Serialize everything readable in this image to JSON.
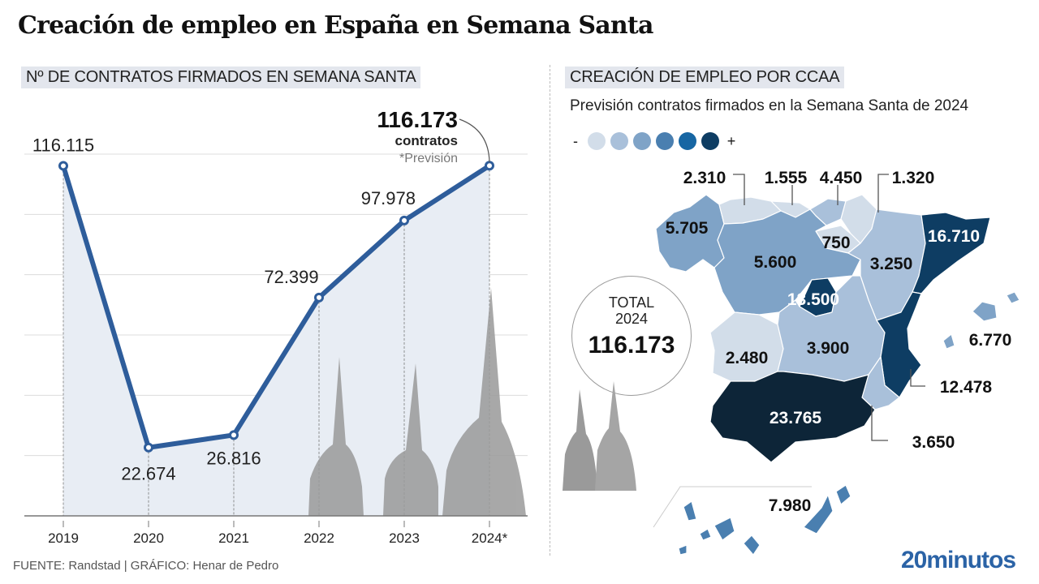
{
  "title": "Creación de empleo en España en Semana Santa",
  "left_section_label": "Nº DE CONTRATOS FIRMADOS EN SEMANA SANTA",
  "right_section_label": "CREACIÓN DE EMPLEO POR CCAA",
  "right_subtitle": "Previsión contratos firmados en la Semana Santa de 2024",
  "legend": {
    "minus": "-",
    "plus": "+",
    "colors": [
      "#d2dde9",
      "#a9c0da",
      "#7fa3c7",
      "#4a7fb0",
      "#1766a3",
      "#0e3d63"
    ]
  },
  "total_box": {
    "label1": "TOTAL",
    "label2": "2024",
    "value": "116.173"
  },
  "highlight": {
    "value": "116.173",
    "unit": "contratos",
    "note": "*Previsión"
  },
  "footer": "FUENTE: Randstad  |  GRÁFICO: Henar de Pedro",
  "brand": "20minutos",
  "colors": {
    "line": "#2e5d9b",
    "area": "#e8edf4",
    "grid": "#dcdcdc"
  },
  "chart_data": [
    {
      "type": "line",
      "title": "Nº de contratos firmados en Semana Santa",
      "xlabel": "",
      "ylabel": "",
      "categories": [
        "2019",
        "2020",
        "2021",
        "2022",
        "2023",
        "2024*"
      ],
      "values": [
        116115,
        22674,
        26816,
        72399,
        97978,
        116173
      ],
      "labels": [
        "116.115",
        "22.674",
        "26.816",
        "72.399",
        "97.978",
        "116.173"
      ],
      "ylim": [
        0,
        120000
      ],
      "grid_step": 20000,
      "grid": true,
      "note": "2024: previsión"
    },
    {
      "type": "table",
      "title": "Creación de empleo por CCAA - Previsión contratos firmados en la Semana Santa de 2024",
      "regions": [
        {
          "name": "Galicia",
          "value": 5705,
          "label": "5.705",
          "level": 3
        },
        {
          "name": "Asturias",
          "value": 2310,
          "label": "2.310",
          "level": 1
        },
        {
          "name": "Cantabria",
          "value": 1555,
          "label": "1.555",
          "level": 1
        },
        {
          "name": "País Vasco",
          "value": 4450,
          "label": "4.450",
          "level": 2
        },
        {
          "name": "Navarra",
          "value": 1320,
          "label": "1.320",
          "level": 1
        },
        {
          "name": "La Rioja",
          "value": 750,
          "label": "750",
          "level": 1
        },
        {
          "name": "Castilla y León",
          "value": 5600,
          "label": "5.600",
          "level": 3
        },
        {
          "name": "Aragón",
          "value": 3250,
          "label": "3.250",
          "level": 2
        },
        {
          "name": "Cataluña",
          "value": 16710,
          "label": "16.710",
          "level": 6
        },
        {
          "name": "Madrid",
          "value": 13500,
          "label": "13.500",
          "level": 6
        },
        {
          "name": "Extremadura",
          "value": 2480,
          "label": "2.480",
          "level": 1
        },
        {
          "name": "Castilla-La Mancha",
          "value": 3900,
          "label": "3.900",
          "level": 2
        },
        {
          "name": "Comunidad Valenciana",
          "value": 12478,
          "label": "12.478",
          "level": 6
        },
        {
          "name": "Murcia",
          "value": 3650,
          "label": "3.650",
          "level": 2
        },
        {
          "name": "Andalucía",
          "value": 23765,
          "label": "23.765",
          "level": 6
        },
        {
          "name": "Baleares",
          "value": 6770,
          "label": "6.770",
          "level": 3
        },
        {
          "name": "Canarias",
          "value": 7980,
          "label": "7.980",
          "level": 4
        }
      ],
      "total": 116173
    }
  ]
}
